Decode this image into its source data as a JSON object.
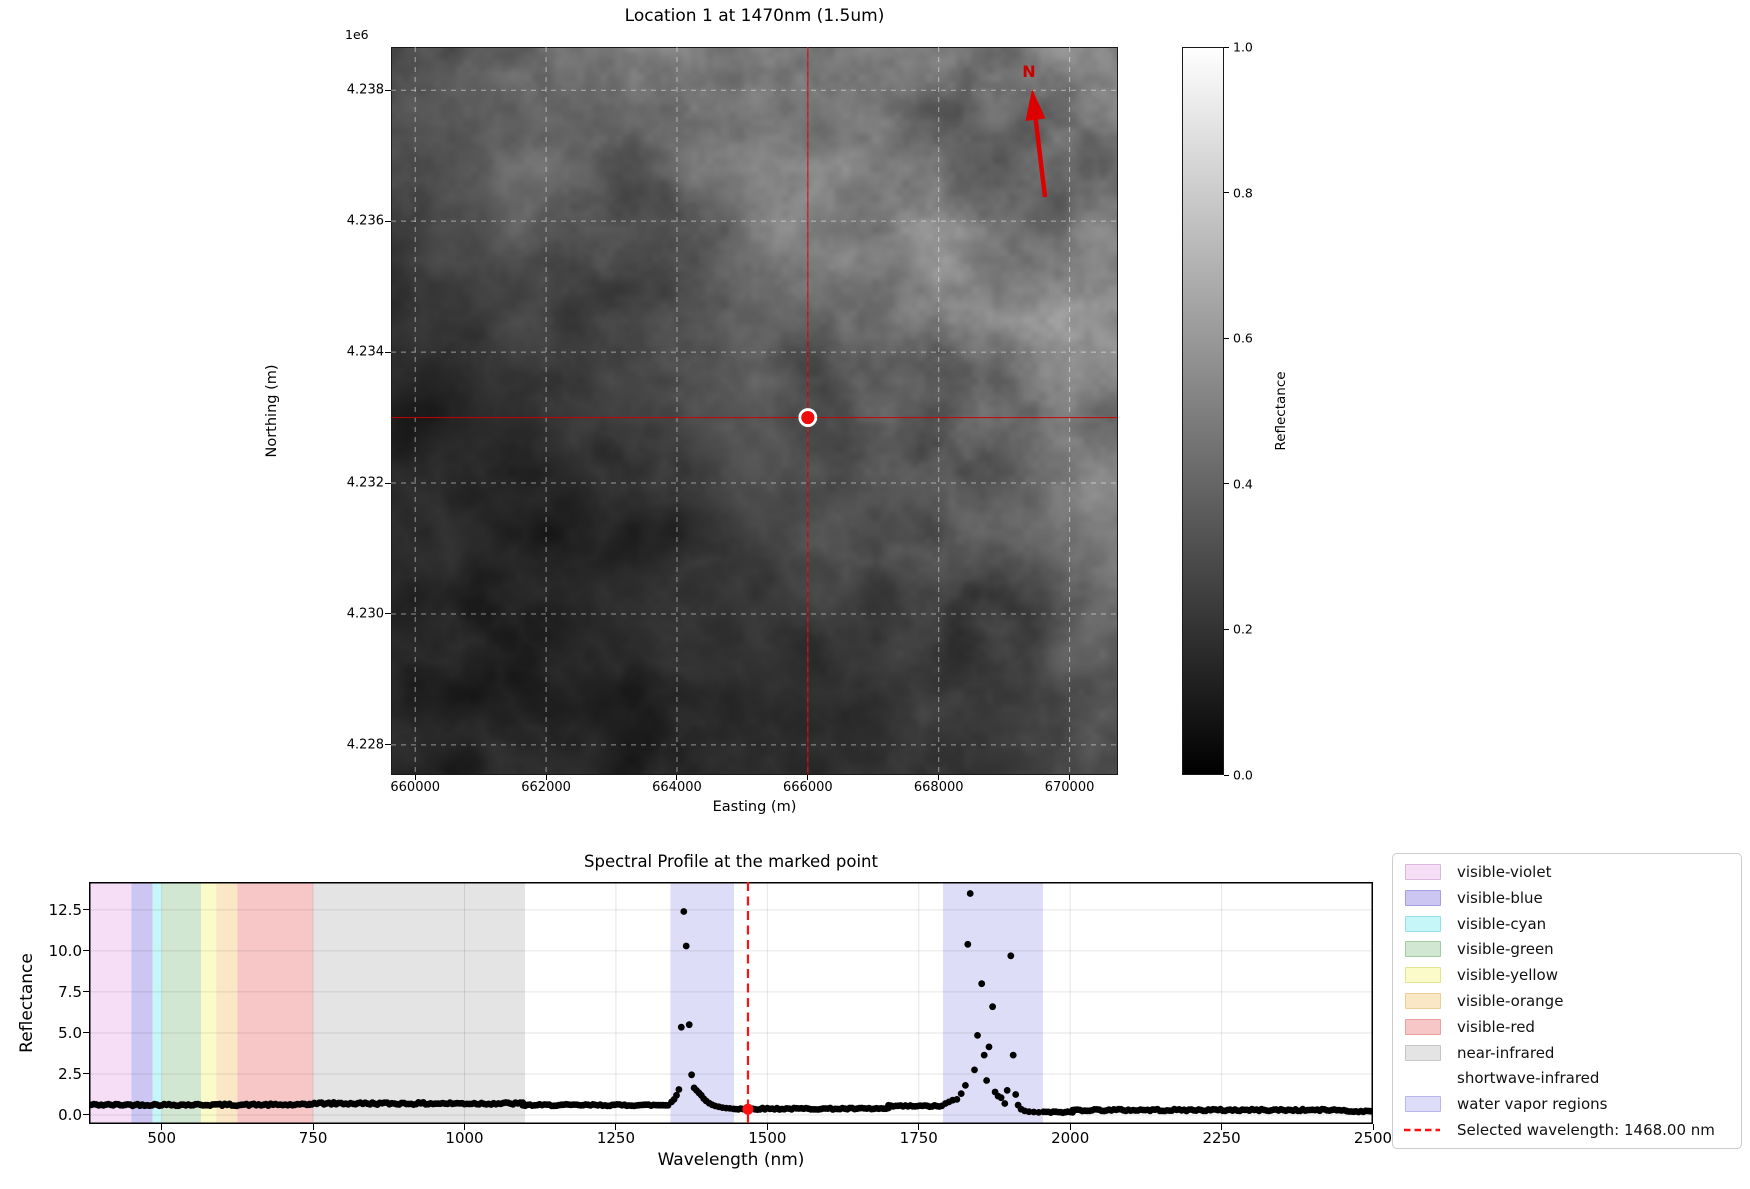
{
  "figure": {
    "background": "#ffffff"
  },
  "chart_data": [
    {
      "type": "heatmap",
      "title": "Location 1 at 1470nm (1.5um)",
      "xlabel": "Easting (m)",
      "ylabel": "Northing (m)",
      "y_offset_label": "1e6",
      "north_label": "N",
      "xlim": [
        659630,
        670740
      ],
      "ylim": [
        4227540,
        4238660
      ],
      "xticks": [
        660000,
        662000,
        664000,
        666000,
        668000,
        670000
      ],
      "xtick_labels": [
        "660000",
        "662000",
        "664000",
        "666000",
        "668000",
        "670000"
      ],
      "yticks": [
        4238000,
        4236000,
        4234000,
        4232000,
        4230000,
        4228000
      ],
      "ytick_labels": [
        "4.238",
        "4.236",
        "4.234",
        "4.232",
        "4.230",
        "4.228"
      ],
      "grid": true,
      "image_description": "grayscale reflectance image at 1470nm, brighter terrain in upper right, dark drainage textures lower left",
      "value_range": [
        0.0,
        1.0
      ],
      "marked_point": {
        "easting": 666000,
        "northing": 4233000
      },
      "crosshair_color": "#cc0000",
      "marker_color": "#ee0c0c",
      "north_arrow_color": "#dd0000",
      "colorbar": {
        "label": "Reflectance",
        "vmin": 0.0,
        "vmax": 1.0,
        "tick_labels": [
          "1.0",
          "0.8",
          "0.6",
          "0.4",
          "0.2",
          "0.0"
        ],
        "tick_values": [
          1.0,
          0.8,
          0.6,
          0.4,
          0.2,
          0.0
        ]
      }
    },
    {
      "type": "scatter",
      "title": "Spectral Profile at the marked point",
      "xlabel": "Wavelength (nm)",
      "ylabel": "Reflectance",
      "xlim": [
        380,
        2500
      ],
      "ylim": [
        -0.55,
        14.2
      ],
      "xticks": [
        500,
        750,
        1000,
        1250,
        1500,
        1750,
        2000,
        2250,
        2500
      ],
      "xtick_labels": [
        "500",
        "750",
        "1000",
        "1250",
        "1500",
        "1750",
        "2000",
        "2250",
        "2500"
      ],
      "yticks": [
        0.0,
        2.5,
        5.0,
        7.5,
        10.0,
        12.5
      ],
      "ytick_labels": [
        "0.0",
        "2.5",
        "5.0",
        "7.5",
        "10.0",
        "12.5"
      ],
      "grid": true,
      "dot_color": "#000000",
      "selected_wavelength_nm": 1468.0,
      "selected_line_color": "#ff1111",
      "selected_point": [
        1468,
        0.35
      ],
      "bands": [
        {
          "name": "visible-violet",
          "from": 380,
          "to": 450,
          "fill": "#f7def7"
        },
        {
          "name": "visible-blue",
          "from": 450,
          "to": 485,
          "fill": "#cbc6f2"
        },
        {
          "name": "visible-cyan",
          "from": 485,
          "to": 500,
          "fill": "#c6f6f8"
        },
        {
          "name": "visible-green",
          "from": 500,
          "to": 565,
          "fill": "#d2e7d2"
        },
        {
          "name": "visible-yellow",
          "from": 565,
          "to": 590,
          "fill": "#fbfbc9"
        },
        {
          "name": "visible-orange",
          "from": 590,
          "to": 625,
          "fill": "#fae7c6"
        },
        {
          "name": "visible-red",
          "from": 625,
          "to": 750,
          "fill": "#f7c7c7"
        },
        {
          "name": "near-infrared",
          "from": 750,
          "to": 1100,
          "fill": "#e4e4e4"
        },
        {
          "name": "shortwave-infrared",
          "from": 1100,
          "to": 2500,
          "fill": "#ffffff"
        },
        {
          "name": "water vapor regions",
          "from": 1340,
          "to": 1445,
          "fill": "#deddf7"
        },
        {
          "name": "water vapor regions",
          "from": 1790,
          "to": 1955,
          "fill": "#deddf7"
        }
      ],
      "baseline_segments": [
        {
          "from": 380,
          "to": 744,
          "step": 4,
          "level": 0.62,
          "jitter": 0.06
        },
        {
          "from": 744,
          "to": 1096,
          "step": 4,
          "level": 0.7,
          "jitter": 0.07
        },
        {
          "from": 1096,
          "to": 1338,
          "step": 4,
          "level": 0.6,
          "jitter": 0.05
        },
        {
          "from": 1448,
          "to": 1700,
          "step": 4,
          "level": 0.38,
          "jitter": 0.05
        },
        {
          "from": 1700,
          "to": 1790,
          "step": 4,
          "level": 0.54,
          "jitter": 0.05
        },
        {
          "from": 1956,
          "to": 2004,
          "step": 4,
          "level": 0.17,
          "jitter": 0.04
        },
        {
          "from": 2004,
          "to": 2456,
          "step": 4,
          "level": 0.3,
          "jitter": 0.06
        },
        {
          "from": 2456,
          "to": 2500,
          "step": 4,
          "level": 0.22,
          "jitter": 0.04
        }
      ],
      "spike_points": [
        [
          1342,
          0.8
        ],
        [
          1346,
          0.95
        ],
        [
          1350,
          1.2
        ],
        [
          1354,
          1.55
        ],
        [
          1358,
          5.35
        ],
        [
          1362,
          12.4
        ],
        [
          1366,
          10.3
        ],
        [
          1371,
          5.5
        ],
        [
          1375,
          2.45
        ],
        [
          1379,
          1.65
        ],
        [
          1383,
          1.5
        ],
        [
          1387,
          1.35
        ],
        [
          1391,
          1.2
        ],
        [
          1395,
          1.0
        ],
        [
          1399,
          0.85
        ],
        [
          1404,
          0.72
        ],
        [
          1409,
          0.62
        ],
        [
          1414,
          0.55
        ],
        [
          1420,
          0.5
        ],
        [
          1426,
          0.45
        ],
        [
          1432,
          0.42
        ],
        [
          1438,
          0.4
        ],
        [
          1444,
          0.37
        ],
        [
          1794,
          0.7
        ],
        [
          1800,
          0.8
        ],
        [
          1806,
          0.9
        ],
        [
          1813,
          0.95
        ],
        [
          1820,
          1.3
        ],
        [
          1827,
          1.8
        ],
        [
          1831,
          10.4
        ],
        [
          1835,
          13.5
        ],
        [
          1842,
          2.75
        ],
        [
          1847,
          4.85
        ],
        [
          1854,
          8.0
        ],
        [
          1858,
          3.65
        ],
        [
          1862,
          2.1
        ],
        [
          1866,
          4.15
        ],
        [
          1872,
          6.6
        ],
        [
          1876,
          1.4
        ],
        [
          1881,
          1.15
        ],
        [
          1886,
          1.05
        ],
        [
          1892,
          0.7
        ],
        [
          1896,
          1.5
        ],
        [
          1902,
          9.7
        ],
        [
          1906,
          3.65
        ],
        [
          1910,
          1.25
        ],
        [
          1914,
          0.6
        ],
        [
          1919,
          0.35
        ],
        [
          1925,
          0.25
        ],
        [
          1932,
          0.2
        ],
        [
          1940,
          0.18
        ],
        [
          1948,
          0.16
        ]
      ],
      "legend_items": [
        {
          "label": "visible-violet",
          "swatch": "patch",
          "fill": "#f7def7",
          "edge": "#dbb8db"
        },
        {
          "label": "visible-blue",
          "swatch": "patch",
          "fill": "#cbc6f2",
          "edge": "#a49de0"
        },
        {
          "label": "visible-cyan",
          "swatch": "patch",
          "fill": "#c6f6f8",
          "edge": "#8fe2e6"
        },
        {
          "label": "visible-green",
          "swatch": "patch",
          "fill": "#d2e7d2",
          "edge": "#a3cba3"
        },
        {
          "label": "visible-yellow",
          "swatch": "patch",
          "fill": "#fbfbc9",
          "edge": "#e3e392"
        },
        {
          "label": "visible-orange",
          "swatch": "patch",
          "fill": "#fae7c6",
          "edge": "#ecce94"
        },
        {
          "label": "visible-red",
          "swatch": "patch",
          "fill": "#f7c7c7",
          "edge": "#ec9f9f"
        },
        {
          "label": "near-infrared",
          "swatch": "patch",
          "fill": "#e4e4e4",
          "edge": "#c6c6c6"
        },
        {
          "label": "shortwave-infrared",
          "swatch": "patch",
          "fill": "#ffffff",
          "edge": "#ffffff"
        },
        {
          "label": "water vapor regions",
          "swatch": "patch",
          "fill": "#deddf7",
          "edge": "#b9b7ea"
        },
        {
          "label": "Selected wavelength: 1468.00 nm",
          "swatch": "dashed-line",
          "color": "#ff1111"
        }
      ]
    }
  ]
}
